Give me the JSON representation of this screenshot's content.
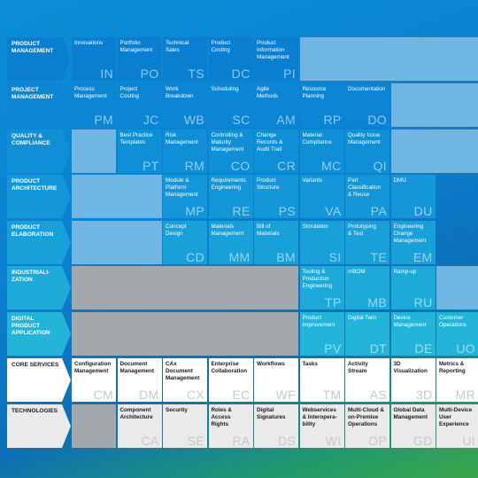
{
  "rows": [
    {
      "label": "PRODUCT\nMANAGEMENT",
      "key": "pm"
    },
    {
      "label": "PROJECT\nMANAGEMENT",
      "key": "prj"
    },
    {
      "label": "QUALITY &\nCOMPLIANCE",
      "key": "qc"
    },
    {
      "label": "PRODUCT\nARCHITECTURE",
      "key": "pa"
    },
    {
      "label": "PRODUCT\nELABORATION",
      "key": "pe"
    },
    {
      "label": "INDUSTRIALI-\nZATION",
      "key": "ind"
    },
    {
      "label": "DIGITAL\nPRODUCT\nAPPLICATION",
      "key": "dpa"
    },
    {
      "label": "CORE SERVICES",
      "key": "cs"
    },
    {
      "label": "TECHNOLOGIES",
      "key": "tech"
    }
  ],
  "cells": [
    {
      "row": 0,
      "col": 0,
      "name": "Innovations",
      "abbr": "IN"
    },
    {
      "row": 0,
      "col": 1,
      "name": "Portfolio\nManagement",
      "abbr": "PO"
    },
    {
      "row": 0,
      "col": 2,
      "name": "Technical\nSales",
      "abbr": "TS"
    },
    {
      "row": 0,
      "col": 3,
      "name": "Product\nCosting",
      "abbr": "DC"
    },
    {
      "row": 0,
      "col": 4,
      "name": "Product\nInformation\nManagement",
      "abbr": "PI"
    },
    {
      "row": 1,
      "col": 0,
      "name": "Process\nManagement",
      "abbr": "PM"
    },
    {
      "row": 1,
      "col": 1,
      "name": "Project\nCosting",
      "abbr": "JC"
    },
    {
      "row": 1,
      "col": 2,
      "name": "Work\nBreakdown",
      "abbr": "WB"
    },
    {
      "row": 1,
      "col": 3,
      "name": "Scheduling",
      "abbr": "SC"
    },
    {
      "row": 1,
      "col": 4,
      "name": "Agile\nMethods",
      "abbr": "AM"
    },
    {
      "row": 1,
      "col": 5,
      "name": "Resource\nPlanning",
      "abbr": "RP"
    },
    {
      "row": 1,
      "col": 6,
      "name": "Documentation",
      "abbr": "DO"
    },
    {
      "row": 2,
      "col": 1,
      "name": "Best Practice\nTemplates",
      "abbr": "PT"
    },
    {
      "row": 2,
      "col": 2,
      "name": "Risk\nManagement",
      "abbr": "RM"
    },
    {
      "row": 2,
      "col": 3,
      "name": "Controlling &\nMaturity\nManagement",
      "abbr": "CO"
    },
    {
      "row": 2,
      "col": 4,
      "name": "Change\nRecords &\nAudit Trail",
      "abbr": "CR"
    },
    {
      "row": 2,
      "col": 5,
      "name": "Material\nCompliance",
      "abbr": "MC"
    },
    {
      "row": 2,
      "col": 6,
      "name": "Quality Issue\nManagement",
      "abbr": "QI"
    },
    {
      "row": 3,
      "col": 2,
      "name": "Module &\nPlatform\nManagement",
      "abbr": "MP"
    },
    {
      "row": 3,
      "col": 3,
      "name": "Requirements\nEngineering",
      "abbr": "RE"
    },
    {
      "row": 3,
      "col": 4,
      "name": "Product\nStructure",
      "abbr": "PS"
    },
    {
      "row": 3,
      "col": 5,
      "name": "Variants",
      "abbr": "VA"
    },
    {
      "row": 3,
      "col": 6,
      "name": "Part\nClassification\n& Reuse",
      "abbr": "PA"
    },
    {
      "row": 3,
      "col": 7,
      "name": "DMU",
      "abbr": "DU"
    },
    {
      "row": 4,
      "col": 2,
      "name": "Concept\nDesign",
      "abbr": "CD"
    },
    {
      "row": 4,
      "col": 3,
      "name": "Materials\nManagement",
      "abbr": "MM"
    },
    {
      "row": 4,
      "col": 4,
      "name": "Bill of\nMaterials",
      "abbr": "BM"
    },
    {
      "row": 4,
      "col": 5,
      "name": "Simulation",
      "abbr": "SI"
    },
    {
      "row": 4,
      "col": 6,
      "name": "Prototyping\n& Test",
      "abbr": "TE"
    },
    {
      "row": 4,
      "col": 7,
      "name": "Engineering\nChange\nManagement",
      "abbr": "EM"
    },
    {
      "row": 5,
      "col": 5,
      "name": "Tooling &\nProduction\nEngineering",
      "abbr": "TP"
    },
    {
      "row": 5,
      "col": 6,
      "name": "mBOM",
      "abbr": "MB"
    },
    {
      "row": 5,
      "col": 7,
      "name": "Ramp-up",
      "abbr": "RU"
    },
    {
      "row": 6,
      "col": 5,
      "name": "Product\nImprovement",
      "abbr": "PV"
    },
    {
      "row": 6,
      "col": 6,
      "name": "Digital Twin",
      "abbr": "DT"
    },
    {
      "row": 6,
      "col": 7,
      "name": "Device\nManagement",
      "abbr": "DE"
    },
    {
      "row": 6,
      "col": 8,
      "name": "Customer\nOperations",
      "abbr": "UO"
    },
    {
      "row": 7,
      "col": 0,
      "name": "Configuration\nManagement",
      "abbr": "CM"
    },
    {
      "row": 7,
      "col": 1,
      "name": "Document\nManagement",
      "abbr": "DM"
    },
    {
      "row": 7,
      "col": 2,
      "name": "CAx Document\nManagement",
      "abbr": "CX"
    },
    {
      "row": 7,
      "col": 3,
      "name": "Enterprise\nCollaboration",
      "abbr": "EC"
    },
    {
      "row": 7,
      "col": 4,
      "name": "Workflows",
      "abbr": "WF"
    },
    {
      "row": 7,
      "col": 5,
      "name": "Tasks",
      "abbr": "TM"
    },
    {
      "row": 7,
      "col": 6,
      "name": "Activity\nStream",
      "abbr": "AS"
    },
    {
      "row": 7,
      "col": 7,
      "name": "3D\nVisualization",
      "abbr": "3D"
    },
    {
      "row": 7,
      "col": 8,
      "name": "Metrics &\nReporting",
      "abbr": "MR"
    },
    {
      "row": 8,
      "col": 1,
      "name": "Component\nArchitecture",
      "abbr": "CA"
    },
    {
      "row": 8,
      "col": 2,
      "name": "Security",
      "abbr": "SE"
    },
    {
      "row": 8,
      "col": 3,
      "name": "Roles & Access\nRights",
      "abbr": "RA"
    },
    {
      "row": 8,
      "col": 4,
      "name": "Digital\nSignatures",
      "abbr": "DS"
    },
    {
      "row": 8,
      "col": 5,
      "name": "Webservices\n& Interopera-\nbility",
      "abbr": "WI"
    },
    {
      "row": 8,
      "col": 6,
      "name": "Multi-Cloud &\non-Premise\nOperations",
      "abbr": "OP"
    },
    {
      "row": 8,
      "col": 7,
      "name": "Global Data\nManagement",
      "abbr": "GD"
    },
    {
      "row": 8,
      "col": 8,
      "name": "Multi-Device\nUser\nExperience",
      "abbr": "UI"
    }
  ],
  "colors": {
    "pm": "#0a7fd2",
    "prj": "#0b86d4",
    "qc": "#0e8fd6",
    "pa": "#1397d8",
    "pe": "#18a0d9",
    "ind": "#1eaad9",
    "dpa": "#22b5d9",
    "core_label": "#ffffff",
    "tech_label": "#eaeaea",
    "empty_light": "#6fb6e3",
    "empty_grey": "#a3a8ad"
  }
}
